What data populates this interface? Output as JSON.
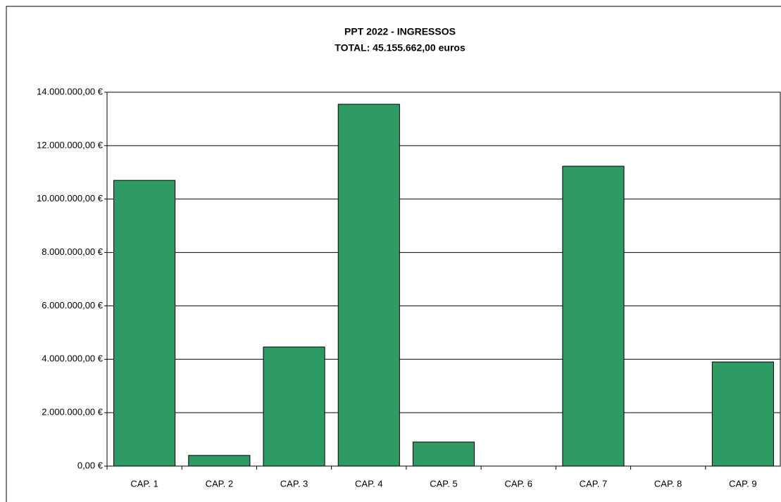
{
  "chart_data": {
    "type": "bar",
    "title": "PPT 2022 - INGRESSOS",
    "subtitle": "TOTAL: 45.155.662,00 euros",
    "categories": [
      "CAP. 1",
      "CAP. 2",
      "CAP. 3",
      "CAP. 4",
      "CAP. 5",
      "CAP. 6",
      "CAP. 7",
      "CAP. 8",
      "CAP. 9"
    ],
    "values": [
      10700000,
      400000,
      4460000,
      13550000,
      900000,
      0,
      11230000,
      0,
      3900000
    ],
    "color": "#2e9b65",
    "ylim": [
      0,
      14000000
    ],
    "yticks": [
      {
        "value": 0,
        "label": "0,00 €"
      },
      {
        "value": 2000000,
        "label": "2.000.000,00 €"
      },
      {
        "value": 4000000,
        "label": "4.000.000,00 €"
      },
      {
        "value": 6000000,
        "label": "6.000.000,00 €"
      },
      {
        "value": 8000000,
        "label": "8.000.000,00 €"
      },
      {
        "value": 10000000,
        "label": "10.000.000,00 €"
      },
      {
        "value": 12000000,
        "label": "12.000.000,00 €"
      },
      {
        "value": 14000000,
        "label": "14.000.000,00 €"
      }
    ],
    "grid": true
  }
}
